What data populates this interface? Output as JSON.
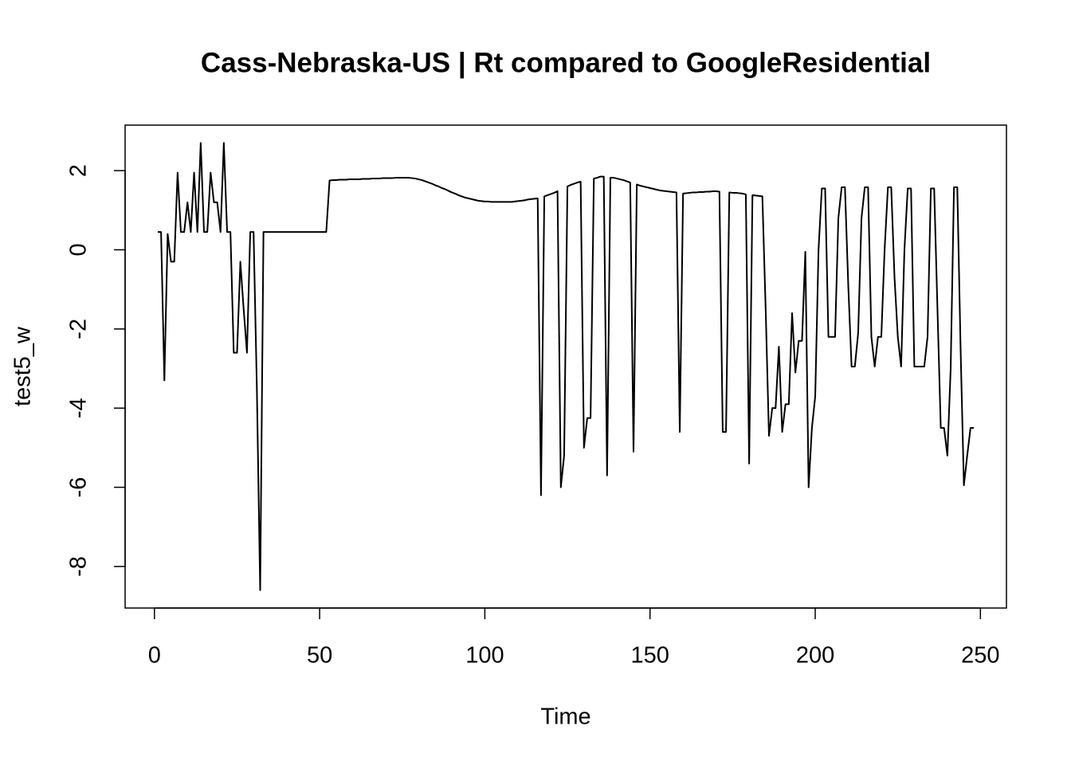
{
  "chart_data": {
    "type": "line",
    "title": "Cass-Nebraska-US | Rt compared to GoogleResidential",
    "x_label": "Time",
    "y_label": "test5_w",
    "color": "#000000",
    "x": [
      1,
      2,
      3,
      4,
      5,
      6,
      7,
      8,
      9,
      10,
      11,
      12,
      13,
      14,
      15,
      16,
      17,
      18,
      19,
      20,
      21,
      22,
      23,
      24,
      25,
      26,
      27,
      28,
      29,
      30,
      31,
      32,
      33,
      34,
      35,
      36,
      37,
      38,
      39,
      40,
      41,
      42,
      43,
      44,
      45,
      46,
      47,
      48,
      49,
      50,
      51,
      52,
      53,
      54,
      55,
      56,
      57,
      58,
      59,
      60,
      61,
      62,
      63,
      64,
      65,
      66,
      67,
      68,
      69,
      70,
      71,
      72,
      73,
      74,
      75,
      76,
      77,
      78,
      79,
      80,
      81,
      82,
      83,
      84,
      85,
      86,
      87,
      88,
      89,
      90,
      91,
      92,
      93,
      94,
      95,
      96,
      97,
      98,
      99,
      100,
      101,
      102,
      103,
      104,
      105,
      106,
      107,
      108,
      109,
      110,
      111,
      112,
      113,
      114,
      115,
      116,
      117,
      118,
      119,
      120,
      121,
      122,
      123,
      124,
      125,
      126,
      127,
      128,
      129,
      130,
      131,
      132,
      133,
      134,
      135,
      136,
      137,
      138,
      139,
      140,
      141,
      142,
      143,
      144,
      145,
      146,
      147,
      148,
      149,
      150,
      151,
      152,
      153,
      154,
      155,
      156,
      157,
      158,
      159,
      160,
      161,
      162,
      163,
      164,
      165,
      166,
      167,
      168,
      169,
      170,
      171,
      172,
      173,
      174,
      175,
      176,
      177,
      178,
      179,
      180,
      181,
      182,
      183,
      184,
      185,
      186,
      187,
      188,
      189,
      190,
      191,
      192,
      193,
      194,
      195,
      196,
      197,
      198,
      199,
      200,
      201,
      202,
      203,
      204,
      205,
      206,
      207,
      208,
      209,
      210,
      211,
      212,
      213,
      214,
      215,
      216,
      217,
      218,
      219,
      220,
      221,
      222,
      223,
      224,
      225,
      226,
      227,
      228,
      229,
      230,
      231,
      232,
      233,
      234,
      235,
      236,
      237,
      238,
      239,
      240,
      241,
      242,
      243,
      244,
      245,
      246,
      247,
      248
    ],
    "values": [
      0.45,
      0.45,
      -3.3,
      0.4,
      -0.3,
      -0.3,
      1.95,
      0.45,
      0.45,
      1.2,
      0.45,
      1.95,
      0.45,
      2.7,
      0.45,
      0.45,
      1.95,
      1.2,
      1.2,
      0.45,
      2.7,
      0.45,
      0.45,
      -2.6,
      -2.6,
      -0.3,
      -1.5,
      -2.6,
      0.45,
      0.45,
      -3.5,
      -8.6,
      0.45,
      0.45,
      0.45,
      0.45,
      0.45,
      0.45,
      0.45,
      0.45,
      0.45,
      0.45,
      0.45,
      0.45,
      0.45,
      0.45,
      0.45,
      0.45,
      0.45,
      0.45,
      0.45,
      0.45,
      1.75,
      1.76,
      1.76,
      1.77,
      1.77,
      1.77,
      1.78,
      1.78,
      1.78,
      1.78,
      1.79,
      1.79,
      1.79,
      1.8,
      1.8,
      1.8,
      1.81,
      1.81,
      1.81,
      1.81,
      1.82,
      1.82,
      1.82,
      1.82,
      1.82,
      1.81,
      1.8,
      1.78,
      1.76,
      1.73,
      1.7,
      1.67,
      1.63,
      1.6,
      1.56,
      1.53,
      1.49,
      1.45,
      1.42,
      1.38,
      1.35,
      1.32,
      1.3,
      1.28,
      1.26,
      1.24,
      1.23,
      1.22,
      1.22,
      1.21,
      1.21,
      1.21,
      1.21,
      1.21,
      1.21,
      1.21,
      1.22,
      1.23,
      1.24,
      1.25,
      1.27,
      1.28,
      1.29,
      1.3,
      -6.2,
      1.35,
      1.38,
      1.41,
      1.44,
      1.48,
      -6.0,
      -5.2,
      1.6,
      1.64,
      1.67,
      1.7,
      1.72,
      -5.0,
      -4.25,
      -4.25,
      1.8,
      1.82,
      1.85,
      1.85,
      -5.7,
      1.82,
      1.82,
      1.8,
      1.78,
      1.76,
      1.73,
      1.7,
      -5.1,
      1.65,
      1.62,
      1.6,
      1.58,
      1.56,
      1.54,
      1.52,
      1.5,
      1.49,
      1.48,
      1.47,
      1.46,
      1.45,
      -4.6,
      1.42,
      1.43,
      1.44,
      1.45,
      1.45,
      1.46,
      1.46,
      1.47,
      1.47,
      1.48,
      1.48,
      1.47,
      -4.6,
      -4.6,
      1.45,
      1.44,
      1.44,
      1.43,
      1.42,
      1.4,
      -5.4,
      1.38,
      1.37,
      1.36,
      1.35,
      -1.5,
      -4.7,
      -4.0,
      -4.0,
      -2.45,
      -4.6,
      -3.9,
      -3.9,
      -1.6,
      -3.1,
      -2.3,
      -2.3,
      -0.05,
      -6.0,
      -4.5,
      -3.7,
      0.0,
      1.55,
      1.55,
      -2.2,
      -2.2,
      -2.2,
      0.8,
      1.58,
      1.58,
      -0.9,
      -2.95,
      -2.95,
      -2.1,
      0.8,
      1.58,
      1.58,
      -2.2,
      -2.95,
      -2.2,
      -2.2,
      0.0,
      1.58,
      1.58,
      -0.7,
      -2.2,
      -2.95,
      0.0,
      1.55,
      1.55,
      -2.95,
      -2.95,
      -2.95,
      -2.95,
      -2.2,
      1.55,
      1.55,
      -1.5,
      -4.5,
      -4.5,
      -5.2,
      -3.0,
      1.58,
      1.58,
      -2.5,
      -5.95,
      -5.2,
      -4.5,
      -4.5
    ],
    "xlim": [
      -8.88,
      257.88
    ],
    "xticks": [
      0,
      50,
      100,
      150,
      200,
      250
    ],
    "ylim": [
      -9.05,
      3.15
    ],
    "yticks": [
      -8,
      -6,
      -4,
      -2,
      0,
      2
    ]
  }
}
